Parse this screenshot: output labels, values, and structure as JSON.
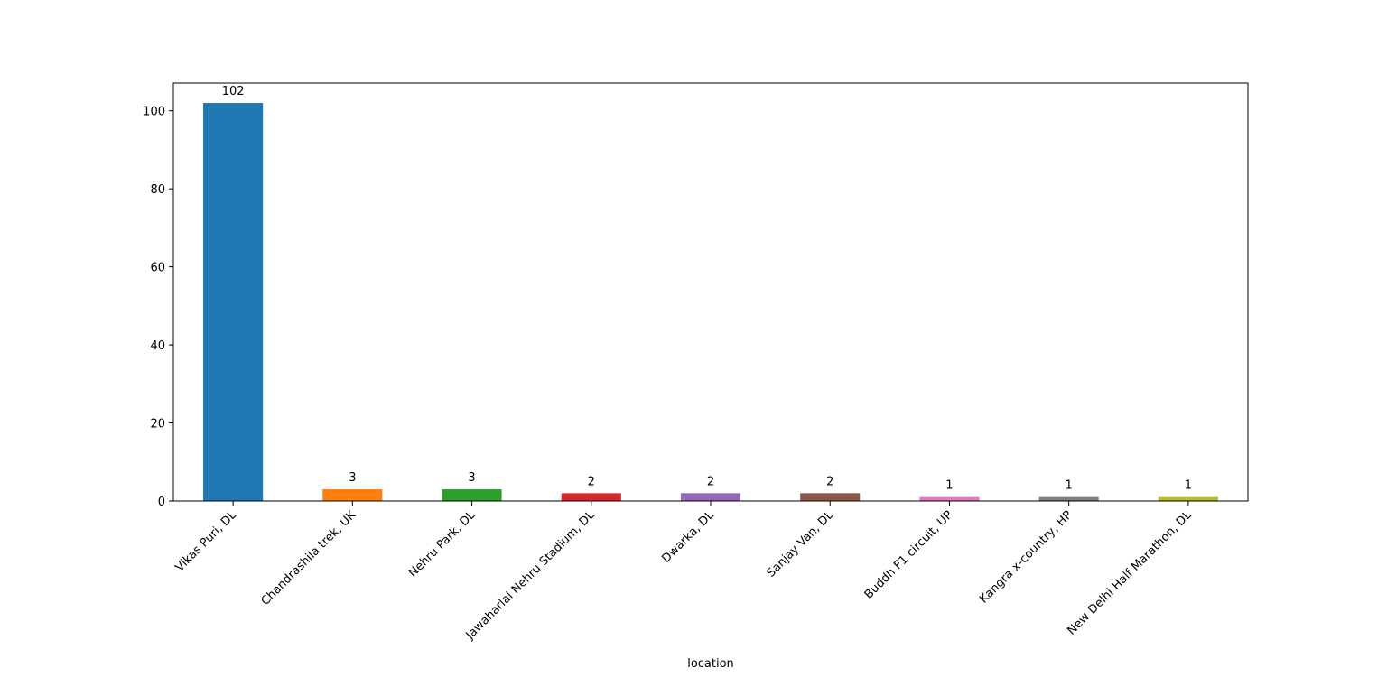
{
  "chart_data": {
    "type": "bar",
    "title": "",
    "xlabel": "location",
    "ylabel": "",
    "categories": [
      "Vikas Puri, DL",
      "Chandrashila trek, UK",
      "Nehru Park, DL",
      "Jawaharlal Nehru Stadium, DL",
      "Dwarka, DL",
      "Sanjay Van, DL",
      "Buddh F1 circuit, UP",
      "Kangra x-country, HP",
      "New Delhi Half Marathon, DL"
    ],
    "values": [
      102,
      3,
      3,
      2,
      2,
      2,
      1,
      1,
      1
    ],
    "value_labels": [
      "102",
      "3",
      "3",
      "2",
      "2",
      "2",
      "1",
      "1",
      "1"
    ],
    "colors": [
      "#1f77b4",
      "#ff7f0e",
      "#2ca02c",
      "#d62728",
      "#9467bd",
      "#8c564b",
      "#e377c2",
      "#7f7f7f",
      "#bcbd22"
    ],
    "yticks": [
      0,
      20,
      40,
      60,
      80,
      100
    ],
    "ytick_labels": [
      "0",
      "20",
      "40",
      "60",
      "80",
      "100"
    ],
    "ylim": [
      0,
      107.1
    ],
    "x_tick_rotation_deg": 45,
    "grid": false,
    "legend": "none"
  }
}
